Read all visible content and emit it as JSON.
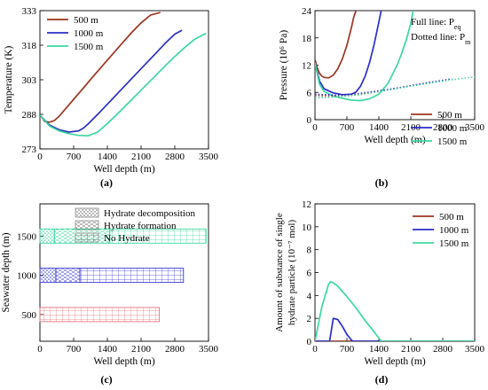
{
  "chart_data": [
    {
      "panel_label": "(a)",
      "type": "line",
      "xlabel": "Well depth (m)",
      "ylabel": "Temperature (K)",
      "xlim": [
        0,
        3500
      ],
      "ylim": [
        273,
        333
      ],
      "xticks": [
        0,
        700,
        1400,
        2100,
        2800,
        3500
      ],
      "yticks": [
        273,
        288,
        303,
        318,
        333
      ],
      "legend": "top-left",
      "series": [
        {
          "name": "500 m",
          "color": "#9b3520",
          "style": "solid",
          "x": [
            0,
            100,
            200,
            300,
            400,
            500,
            700,
            900,
            1100,
            1300,
            1500,
            1700,
            1900,
            2100,
            2300,
            2500
          ],
          "y": [
            287.9,
            284.9,
            284.6,
            285.3,
            287.2,
            289.6,
            294.5,
            299.4,
            304.3,
            309.1,
            313.9,
            318.7,
            323.4,
            327.7,
            331.1,
            332.2
          ]
        },
        {
          "name": "1000 m",
          "color": "#2a2ec7",
          "style": "solid",
          "x": [
            0,
            200,
            400,
            600,
            800,
            900,
            1000,
            1200,
            1400,
            1600,
            1800,
            2000,
            2200,
            2400,
            2600,
            2800,
            2950
          ],
          "y": [
            287.6,
            283.3,
            281.3,
            280.3,
            280.8,
            282.0,
            283.8,
            288.0,
            292.4,
            296.8,
            301.2,
            305.6,
            310.0,
            314.4,
            318.8,
            322.8,
            324.5
          ]
        },
        {
          "name": "1500 m",
          "color": "#3cd8a0",
          "style": "solid",
          "x": [
            0,
            200,
            400,
            600,
            800,
            1000,
            1200,
            1400,
            1600,
            1800,
            2000,
            2200,
            2400,
            2600,
            2800,
            3000,
            3200,
            3450
          ],
          "y": [
            287.7,
            282.9,
            280.8,
            279.6,
            278.9,
            278.7,
            280.3,
            284.0,
            288.0,
            292.2,
            296.4,
            300.6,
            304.8,
            309.0,
            313.1,
            316.9,
            320.4,
            323.2
          ]
        }
      ]
    },
    {
      "panel_label": "(b)",
      "type": "line",
      "xlabel": "Well depth (m)",
      "ylabel": "Pressure (10⁶ Pa)",
      "xlim": [
        0,
        3500
      ],
      "ylim": [
        0,
        24
      ],
      "xticks": [
        0,
        700,
        1400,
        2100,
        2800,
        3500
      ],
      "yticks": [
        0,
        6,
        12,
        18,
        24
      ],
      "legend": "bottom-right",
      "annotation_line1": "Full line: P",
      "annotation_line1_sub": "eq",
      "annotation_line2": "Dotted line: P",
      "annotation_line2_sub": "m",
      "series": [
        {
          "name": "500 m",
          "color": "#9b3520",
          "style": "solid",
          "kind": "P_eq",
          "x": [
            0,
            50,
            100,
            150,
            200,
            300,
            400,
            500,
            600,
            700,
            800,
            850,
            900
          ],
          "y": [
            13.2,
            11.4,
            10.2,
            9.6,
            9.3,
            9.2,
            9.8,
            11.2,
            13.4,
            16.4,
            20.3,
            22.6,
            24.0
          ]
        },
        {
          "name": "1000 m",
          "color": "#2a2ec7",
          "style": "solid",
          "kind": "P_eq",
          "x": [
            0,
            100,
            200,
            400,
            600,
            800,
            900,
            1000,
            1100,
            1200,
            1300,
            1400,
            1450
          ],
          "y": [
            12.6,
            8.5,
            6.8,
            5.9,
            5.5,
            5.6,
            6.1,
            7.4,
            9.6,
            12.7,
            16.8,
            21.5,
            24.0
          ]
        },
        {
          "name": "1500 m",
          "color": "#3cd8a0",
          "style": "solid",
          "kind": "P_eq",
          "x": [
            0,
            100,
            200,
            400,
            600,
            800,
            1000,
            1200,
            1400,
            1600,
            1800,
            1900,
            2000,
            2100,
            2150
          ],
          "y": [
            12.5,
            7.8,
            6.2,
            5.2,
            4.7,
            4.3,
            4.2,
            4.6,
            5.6,
            8.0,
            12.0,
            14.6,
            17.6,
            21.2,
            24.0
          ]
        },
        {
          "name": "500 m",
          "color": "#9b3520",
          "style": "dotted",
          "kind": "P_m",
          "x": [
            0,
            500,
            1000,
            1500,
            2000,
            2500
          ],
          "y": [
            5.3,
            5.2,
            5.6,
            6.4,
            7.3,
            8.2
          ]
        },
        {
          "name": "1000 m",
          "color": "#2a2ec7",
          "style": "dotted",
          "kind": "P_m",
          "x": [
            0,
            500,
            1000,
            1500,
            2000,
            2500,
            3000
          ],
          "y": [
            5.6,
            5.4,
            5.8,
            6.5,
            7.3,
            8.2,
            9.0
          ]
        },
        {
          "name": "1500 m",
          "color": "#3cd8a0",
          "style": "dotted",
          "kind": "P_m",
          "x": [
            0,
            500,
            1000,
            1500,
            2000,
            2500,
            3000,
            3500
          ],
          "y": [
            4.8,
            5.0,
            5.5,
            6.3,
            7.2,
            8.0,
            8.8,
            9.4
          ]
        }
      ]
    },
    {
      "panel_label": "(c)",
      "type": "bar",
      "orientation": "horizontal",
      "xlabel": "Well depth (m)",
      "ylabel": "Seawater depth (m)",
      "xlim": [
        0,
        3500
      ],
      "xticks": [
        0,
        700,
        1400,
        2100,
        2800,
        3500
      ],
      "categories": [
        "500",
        "1000",
        "1500"
      ],
      "legend": "top",
      "legend_entries": [
        {
          "label": "Hydrate decomposition",
          "pattern": "dots"
        },
        {
          "label": "Hydrate formation",
          "pattern": "dashes"
        },
        {
          "label": "No Hydrate",
          "pattern": "grid"
        }
      ],
      "bars": [
        {
          "category": "500",
          "color": "#e8747a",
          "segments": [
            {
              "start": 0,
              "end": 2480,
              "pattern": "grid"
            }
          ]
        },
        {
          "category": "1000",
          "color": "#3a3ad6",
          "segments": [
            {
              "start": 0,
              "end": 330,
              "pattern": "dots"
            },
            {
              "start": 330,
              "end": 830,
              "pattern": "dashes"
            },
            {
              "start": 830,
              "end": 2980,
              "pattern": "grid"
            }
          ]
        },
        {
          "category": "1500",
          "color": "#3cd8a0",
          "segments": [
            {
              "start": 0,
              "end": 300,
              "pattern": "dots"
            },
            {
              "start": 300,
              "end": 1450,
              "pattern": "dashes"
            },
            {
              "start": 1450,
              "end": 3450,
              "pattern": "grid"
            }
          ]
        }
      ]
    },
    {
      "panel_label": "(d)",
      "type": "line",
      "xlabel": "Well depth (m)",
      "ylabel_line1": "Amount of substance of single",
      "ylabel_line2": "hydrate particle (10⁻⁷ mol)",
      "xlim": [
        0,
        3500
      ],
      "ylim": [
        0,
        12
      ],
      "xticks": [
        0,
        700,
        1400,
        2100,
        2800,
        3500
      ],
      "yticks": [
        0,
        2,
        4,
        6,
        8,
        10,
        12
      ],
      "legend": "top-right",
      "series": [
        {
          "name": "500 m",
          "color": "#9b3520",
          "style": "solid",
          "x": [
            0,
            3500
          ],
          "y": [
            0,
            0
          ]
        },
        {
          "name": "1000 m",
          "color": "#2a2ec7",
          "style": "solid",
          "x": [
            0,
            320,
            400,
            500,
            600,
            700,
            800,
            830,
            3500
          ],
          "y": [
            0,
            0,
            2.0,
            1.9,
            1.3,
            0.6,
            0.1,
            0,
            0
          ]
        },
        {
          "name": "1500 m",
          "color": "#3cd8a0",
          "style": "solid",
          "x": [
            0,
            150,
            300,
            350,
            400,
            500,
            700,
            900,
            1100,
            1300,
            1450,
            3500
          ],
          "y": [
            0,
            3.0,
            5.0,
            5.2,
            5.1,
            4.8,
            3.9,
            2.9,
            1.8,
            0.8,
            0,
            0
          ]
        }
      ]
    }
  ]
}
